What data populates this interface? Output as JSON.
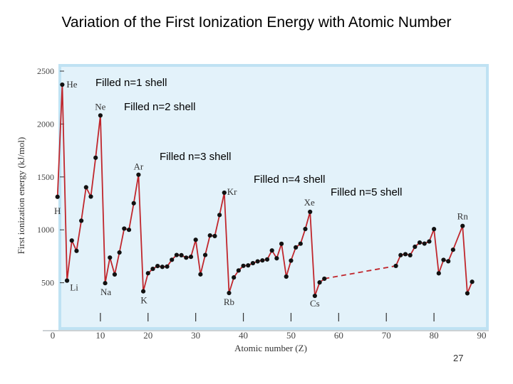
{
  "title": "Variation of the First Ionization Energy with Atomic Number",
  "page_number": "27",
  "colors": {
    "plot_bg": "#e3f2fa",
    "plot_border": "#bfe2f3",
    "line": "#c0262c",
    "marker": "#111111"
  },
  "chart_data": {
    "type": "line",
    "xlabel": "Atomic number (Z)",
    "ylabel": "First ionization energy (kJ/mol)",
    "xlim": [
      0,
      90
    ],
    "ylim": [
      0,
      2500
    ],
    "xticks": [
      0,
      10,
      20,
      30,
      40,
      50,
      60,
      70,
      80,
      90
    ],
    "yticks": [
      500,
      1000,
      1500,
      2000,
      2500
    ],
    "grid": false,
    "series": [
      {
        "name": "",
        "style": "solid",
        "points": [
          [
            1,
            1312
          ],
          [
            2,
            2372
          ],
          [
            3,
            520
          ],
          [
            4,
            899
          ],
          [
            5,
            801
          ],
          [
            6,
            1086
          ],
          [
            7,
            1402
          ],
          [
            8,
            1314
          ],
          [
            9,
            1681
          ],
          [
            10,
            2081
          ],
          [
            11,
            496
          ],
          [
            12,
            738
          ],
          [
            13,
            578
          ],
          [
            14,
            786
          ],
          [
            15,
            1012
          ],
          [
            16,
            1000
          ],
          [
            17,
            1251
          ],
          [
            18,
            1521
          ],
          [
            19,
            419
          ],
          [
            20,
            590
          ],
          [
            21,
            631
          ],
          [
            22,
            658
          ],
          [
            23,
            650
          ],
          [
            24,
            653
          ],
          [
            25,
            717
          ],
          [
            26,
            762
          ],
          [
            27,
            760
          ],
          [
            28,
            737
          ],
          [
            29,
            745
          ],
          [
            30,
            906
          ],
          [
            31,
            579
          ],
          [
            32,
            762
          ],
          [
            33,
            947
          ],
          [
            34,
            941
          ],
          [
            35,
            1140
          ],
          [
            36,
            1351
          ],
          [
            37,
            403
          ],
          [
            38,
            550
          ],
          [
            39,
            616
          ],
          [
            40,
            660
          ],
          [
            41,
            664
          ],
          [
            42,
            685
          ],
          [
            43,
            702
          ],
          [
            44,
            711
          ],
          [
            45,
            720
          ],
          [
            46,
            805
          ],
          [
            47,
            731
          ],
          [
            48,
            868
          ],
          [
            49,
            558
          ],
          [
            50,
            709
          ],
          [
            51,
            834
          ],
          [
            52,
            869
          ],
          [
            53,
            1008
          ],
          [
            54,
            1170
          ],
          [
            55,
            376
          ],
          [
            56,
            503
          ],
          [
            57,
            538
          ]
        ]
      },
      {
        "name": "",
        "style": "dashed",
        "points": [
          [
            57,
            538
          ],
          [
            72,
            659
          ]
        ]
      },
      {
        "name": "",
        "style": "solid",
        "points": [
          [
            72,
            659
          ],
          [
            73,
            761
          ],
          [
            74,
            770
          ],
          [
            75,
            760
          ],
          [
            76,
            840
          ],
          [
            77,
            880
          ],
          [
            78,
            870
          ],
          [
            79,
            890
          ],
          [
            80,
            1007
          ],
          [
            81,
            589
          ],
          [
            82,
            716
          ],
          [
            83,
            703
          ],
          [
            84,
            812
          ],
          [
            86,
            1037
          ],
          [
            87,
            400
          ],
          [
            88,
            509
          ]
        ]
      }
    ],
    "point_labels": [
      {
        "z": 1,
        "text": "H"
      },
      {
        "z": 2,
        "text": "He"
      },
      {
        "z": 3,
        "text": "Li"
      },
      {
        "z": 10,
        "text": "Ne"
      },
      {
        "z": 11,
        "text": "Na"
      },
      {
        "z": 18,
        "text": "Ar"
      },
      {
        "z": 19,
        "text": "K"
      },
      {
        "z": 36,
        "text": "Kr"
      },
      {
        "z": 37,
        "text": "Rb"
      },
      {
        "z": 54,
        "text": "Xe"
      },
      {
        "z": 55,
        "text": "Cs"
      },
      {
        "z": 86,
        "text": "Rn"
      }
    ],
    "annotations": [
      "Filled n=1 shell",
      "Filled n=2 shell",
      "Filled n=3 shell",
      "Filled n=4 shell",
      "Filled n=5 shell"
    ]
  }
}
